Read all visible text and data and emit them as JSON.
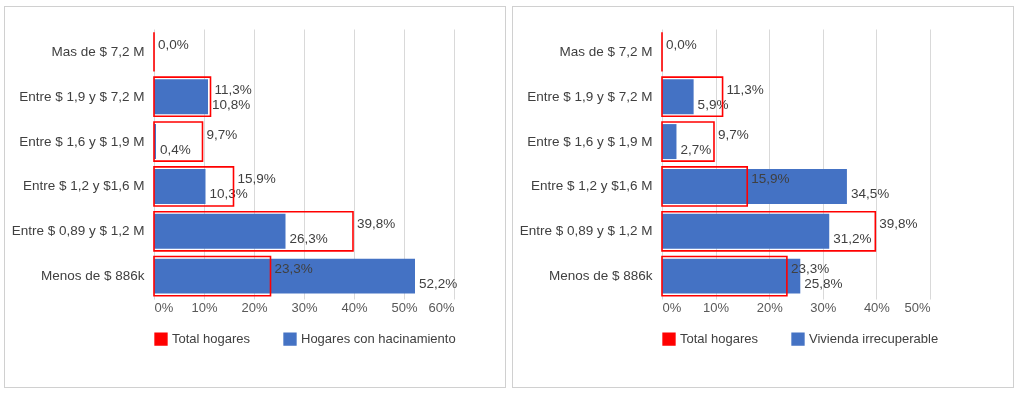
{
  "chart_data": [
    {
      "type": "bar",
      "orientation": "horizontal",
      "categories": [
        "Mas de $ 7,2 M",
        "Entre $ 1,9 y $ 7,2 M",
        "Entre $ 1,6 y $ 1,9 M",
        "Entre $ 1,2 y $1,6 M",
        "Entre $ 0,89 y $ 1,2 M",
        "Menos de $ 886k"
      ],
      "series": [
        {
          "name": "Total hogares",
          "color": "#ff0000",
          "values": [
            0.0,
            11.3,
            9.7,
            15.9,
            39.8,
            23.3
          ],
          "value_labels": [
            "0,0%",
            "11,3%",
            "9,7%",
            "15,9%",
            "39,8%",
            "23,3%"
          ]
        },
        {
          "name": "Hogares con hacinamiento",
          "color": "#4472c4",
          "values": [
            0.0,
            10.8,
            0.4,
            10.3,
            26.3,
            52.2
          ],
          "value_labels": [
            null,
            "10,8%",
            "0,4%",
            "10,3%",
            "26,3%",
            "52,2%"
          ]
        }
      ],
      "xlim": [
        0,
        60
      ],
      "xticks": [
        {
          "value": 0,
          "label": "0%"
        },
        {
          "value": 10,
          "label": "10%"
        },
        {
          "value": 20,
          "label": "20%"
        },
        {
          "value": 30,
          "label": "30%"
        },
        {
          "value": 40,
          "label": "40%"
        },
        {
          "value": 50,
          "label": "50%"
        },
        {
          "value": 60,
          "label": "60%"
        }
      ],
      "grid": "x",
      "legend": "bottom"
    },
    {
      "type": "bar",
      "orientation": "horizontal",
      "categories": [
        "Mas de $ 7,2 M",
        "Entre $ 1,9 y $ 7,2 M",
        "Entre $ 1,6 y $ 1,9 M",
        "Entre $ 1,2 y $1,6 M",
        "Entre $ 0,89 y $ 1,2 M",
        "Menos de $ 886k"
      ],
      "series": [
        {
          "name": "Total hogares",
          "color": "#ff0000",
          "values": [
            0.0,
            11.3,
            9.7,
            15.9,
            39.8,
            23.3
          ],
          "value_labels": [
            "0,0%",
            "11,3%",
            "9,7%",
            "15,9%",
            "39,8%",
            "23,3%"
          ]
        },
        {
          "name": "Vivienda irrecuperable",
          "color": "#4472c4",
          "values": [
            0.0,
            5.9,
            2.7,
            34.5,
            31.2,
            25.8
          ],
          "value_labels": [
            null,
            "5,9%",
            "2,7%",
            "34,5%",
            "31,2%",
            "25,8%"
          ]
        }
      ],
      "xlim": [
        0,
        50
      ],
      "xticks": [
        {
          "value": 0,
          "label": "0%"
        },
        {
          "value": 10,
          "label": "10%"
        },
        {
          "value": 20,
          "label": "20%"
        },
        {
          "value": 30,
          "label": "30%"
        },
        {
          "value": 40,
          "label": "40%"
        },
        {
          "value": 50,
          "label": "50%"
        }
      ],
      "grid": "x",
      "legend": "bottom"
    }
  ]
}
